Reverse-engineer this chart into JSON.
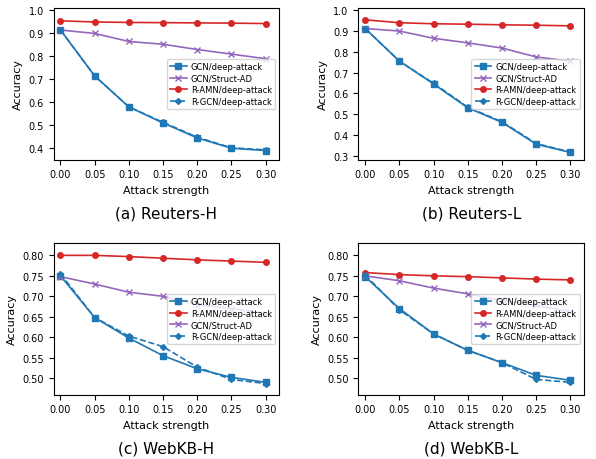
{
  "x": [
    0.0,
    0.05,
    0.1,
    0.15,
    0.2,
    0.25,
    0.3
  ],
  "subplots": [
    {
      "title": "(a) Reuters-H",
      "ylabel": "Accuracy",
      "xlabel": "Attack strength",
      "ylim": [
        0.35,
        1.01
      ],
      "yticks": [
        0.4,
        0.5,
        0.6,
        0.7,
        0.8,
        0.9,
        1.0
      ],
      "legend_loc": "center right",
      "legend_bbox": null,
      "series": [
        {
          "label": "GCN/deep-attack",
          "color": "#1f77b4",
          "linestyle": "-",
          "marker": "s",
          "dashed": false,
          "values": [
            0.915,
            0.715,
            0.58,
            0.51,
            0.445,
            0.4,
            0.39
          ]
        },
        {
          "label": "GCN/Struct-AD",
          "color": "#9467bd",
          "linestyle": "-",
          "marker": "x",
          "dashed": false,
          "values": [
            0.915,
            0.9,
            0.865,
            0.853,
            0.83,
            0.81,
            0.79
          ]
        },
        {
          "label": "R-AMN/deep-attack",
          "color": "#d62728",
          "linestyle": "-",
          "marker": "o",
          "dashed": false,
          "values": [
            0.955,
            0.95,
            0.948,
            0.947,
            0.946,
            0.945,
            0.943
          ]
        },
        {
          "label": "R-GCN/deep-attack",
          "color": "#1f77b4",
          "linestyle": "--",
          "marker": "D",
          "dashed": true,
          "values": [
            0.915,
            0.715,
            0.58,
            0.513,
            0.448,
            0.402,
            0.393
          ]
        }
      ]
    },
    {
      "title": "(b) Reuters-L",
      "ylabel": "Accuracy",
      "xlabel": "Attack strength",
      "ylim": [
        0.28,
        1.01
      ],
      "yticks": [
        0.3,
        0.4,
        0.5,
        0.6,
        0.7,
        0.8,
        0.9,
        1.0
      ],
      "legend_loc": "center right",
      "legend_bbox": null,
      "series": [
        {
          "label": "GCN/deep-attack",
          "color": "#1f77b4",
          "linestyle": "-",
          "marker": "s",
          "dashed": false,
          "values": [
            0.912,
            0.755,
            0.645,
            0.53,
            0.46,
            0.355,
            0.315
          ]
        },
        {
          "label": "GCN/Struct-AD",
          "color": "#9467bd",
          "linestyle": "-",
          "marker": "x",
          "dashed": false,
          "values": [
            0.912,
            0.9,
            0.865,
            0.843,
            0.818,
            0.775,
            0.755
          ]
        },
        {
          "label": "R-AMN/deep-attack",
          "color": "#d62728",
          "linestyle": "-",
          "marker": "o",
          "dashed": false,
          "values": [
            0.954,
            0.94,
            0.935,
            0.933,
            0.93,
            0.928,
            0.925
          ]
        },
        {
          "label": "R-GCN/deep-attack",
          "color": "#1f77b4",
          "linestyle": "--",
          "marker": "D",
          "dashed": true,
          "values": [
            0.912,
            0.755,
            0.648,
            0.533,
            0.463,
            0.358,
            0.317
          ]
        }
      ]
    },
    {
      "title": "(c) WebKB-H",
      "ylabel": "Accuracy",
      "xlabel": "Attack strength",
      "ylim": [
        0.46,
        0.83
      ],
      "yticks": [
        0.5,
        0.55,
        0.6,
        0.65,
        0.7,
        0.75,
        0.8
      ],
      "legend_loc": "center right",
      "legend_bbox": null,
      "series": [
        {
          "label": "GCN/deep-attack",
          "color": "#1f77b4",
          "linestyle": "-",
          "marker": "s",
          "dashed": false,
          "values": [
            0.75,
            0.648,
            0.598,
            0.555,
            0.523,
            0.502,
            0.49
          ]
        },
        {
          "label": "R-AMN/deep-attack",
          "color": "#d62728",
          "linestyle": "-",
          "marker": "o",
          "dashed": false,
          "values": [
            0.8,
            0.8,
            0.797,
            0.793,
            0.789,
            0.786,
            0.783
          ]
        },
        {
          "label": "GCN/Struct-AD",
          "color": "#9467bd",
          "linestyle": "-",
          "marker": "x",
          "dashed": false,
          "values": [
            0.748,
            0.73,
            0.71,
            0.7,
            0.68,
            0.67,
            0.658
          ]
        },
        {
          "label": "R-GCN/deep-attack",
          "color": "#1f77b4",
          "linestyle": "--",
          "marker": "D",
          "dashed": true,
          "values": [
            0.755,
            0.648,
            0.603,
            0.577,
            0.527,
            0.497,
            0.487
          ]
        }
      ]
    },
    {
      "title": "(d) WebKB-L",
      "ylabel": "Accuracy",
      "xlabel": "Attack strength",
      "ylim": [
        0.46,
        0.83
      ],
      "yticks": [
        0.5,
        0.55,
        0.6,
        0.65,
        0.7,
        0.75,
        0.8
      ],
      "legend_loc": "center right",
      "legend_bbox": null,
      "series": [
        {
          "label": "GCN/deep-attack",
          "color": "#1f77b4",
          "linestyle": "-",
          "marker": "s",
          "dashed": false,
          "values": [
            0.748,
            0.67,
            0.608,
            0.568,
            0.538,
            0.507,
            0.495
          ]
        },
        {
          "label": "R-AMN/deep-attack",
          "color": "#d62728",
          "linestyle": "-",
          "marker": "o",
          "dashed": false,
          "values": [
            0.758,
            0.753,
            0.75,
            0.748,
            0.745,
            0.742,
            0.74
          ]
        },
        {
          "label": "GCN/Struct-AD",
          "color": "#9467bd",
          "linestyle": "-",
          "marker": "x",
          "dashed": false,
          "values": [
            0.75,
            0.738,
            0.72,
            0.706,
            0.69,
            0.678,
            0.662
          ]
        },
        {
          "label": "R-GCN/deep-attack",
          "color": "#1f77b4",
          "linestyle": "--",
          "marker": "D",
          "dashed": true,
          "values": [
            0.752,
            0.667,
            0.608,
            0.568,
            0.538,
            0.497,
            0.49
          ]
        }
      ]
    }
  ],
  "caption_fontsize": 11,
  "tick_fontsize": 7,
  "label_fontsize": 8,
  "legend_fontsize": 6,
  "linewidth": 1.2,
  "markersize": 4
}
